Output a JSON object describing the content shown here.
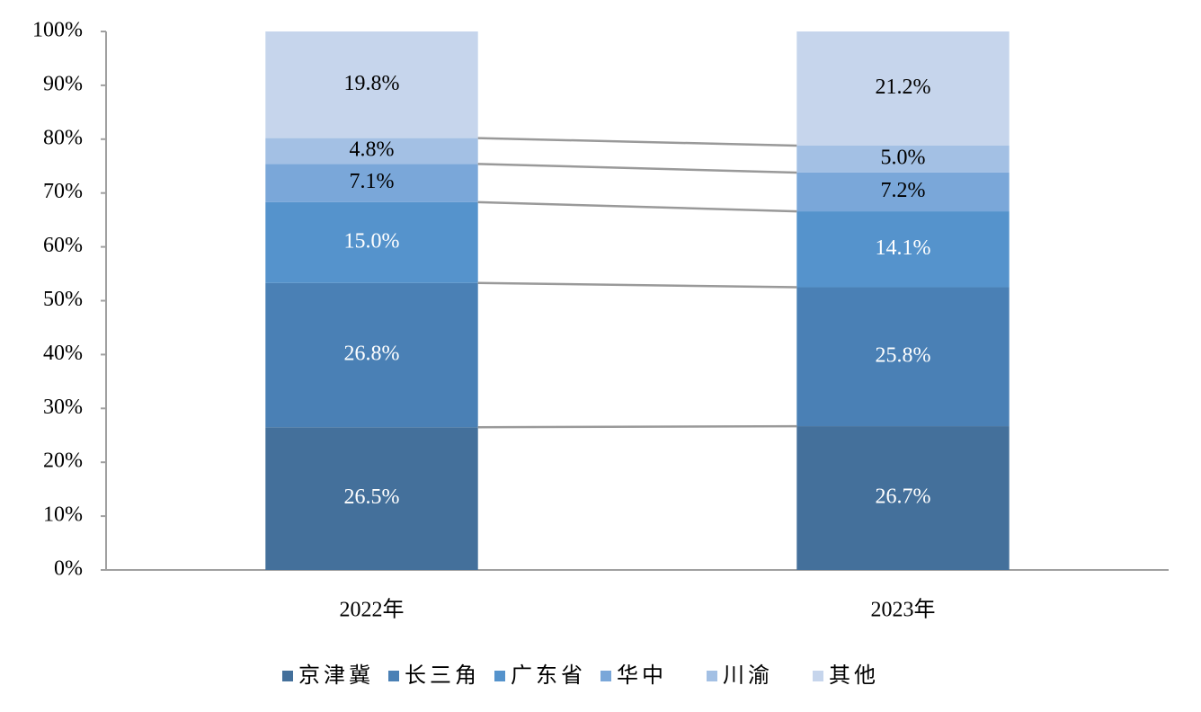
{
  "chart_data": {
    "type": "stacked_bar",
    "categories": [
      "2022年",
      "2023年"
    ],
    "series": [
      {
        "name": "京津冀",
        "color": "#44709b",
        "label_color": "#ffffff",
        "values": [
          26.5,
          26.7
        ],
        "value_labels": [
          "26.5%",
          "26.7%"
        ]
      },
      {
        "name": "长三角",
        "color": "#4a80b5",
        "label_color": "#ffffff",
        "values": [
          26.8,
          25.8
        ],
        "value_labels": [
          "26.8%",
          "25.8%"
        ]
      },
      {
        "name": "广东省",
        "color": "#5593cc",
        "label_color": "#ffffff",
        "values": [
          15.0,
          14.1
        ],
        "value_labels": [
          "15.0%",
          "14.1%"
        ]
      },
      {
        "name": "华中",
        "color": "#7aa7d9",
        "label_color": "#000000",
        "values": [
          7.1,
          7.2
        ],
        "value_labels": [
          "7.1%",
          "7.2%"
        ]
      },
      {
        "name": "川渝",
        "color": "#a3c0e4",
        "label_color": "#000000",
        "values": [
          4.8,
          5.0
        ],
        "value_labels": [
          "4.8%",
          "5.0%"
        ]
      },
      {
        "name": "其他",
        "color": "#c6d5ec",
        "label_color": "#000000",
        "values": [
          19.8,
          21.2
        ],
        "value_labels": [
          "19.8%",
          "21.2%"
        ]
      }
    ],
    "ylim": [
      0,
      100
    ],
    "yticks": [
      {
        "value": 0,
        "label": "0%"
      },
      {
        "value": 10,
        "label": "10%"
      },
      {
        "value": 20,
        "label": "20%"
      },
      {
        "value": 30,
        "label": "30%"
      },
      {
        "value": 40,
        "label": "40%"
      },
      {
        "value": 50,
        "label": "50%"
      },
      {
        "value": 60,
        "label": "60%"
      },
      {
        "value": 70,
        "label": "70%"
      },
      {
        "value": 80,
        "label": "80%"
      },
      {
        "value": 90,
        "label": "90%"
      },
      {
        "value": 100,
        "label": "100%"
      }
    ],
    "connector_lines": true,
    "legend": "bottom"
  }
}
